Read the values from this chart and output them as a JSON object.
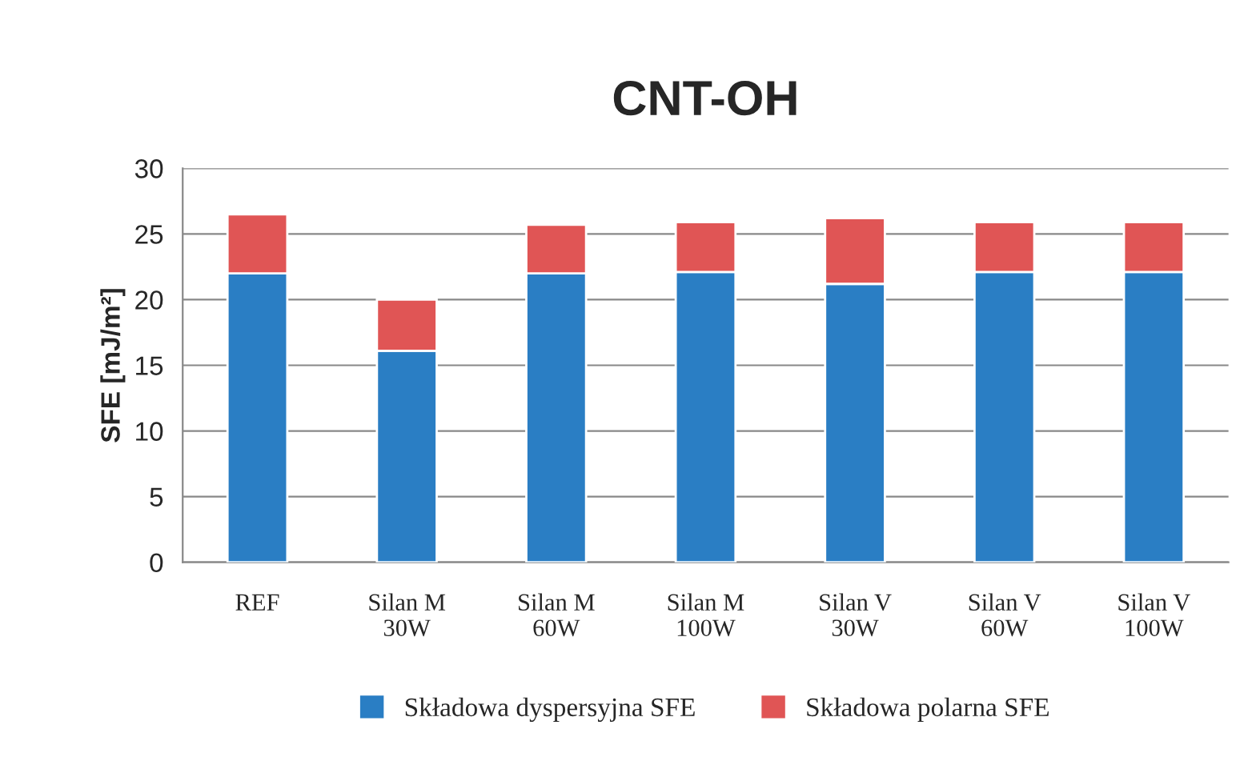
{
  "chart_data": {
    "type": "bar",
    "title": "CNT-OH",
    "ylabel": "SFE [mJ/m²]",
    "stacked": true,
    "categories": [
      "REF",
      "Silan M\n30W",
      "Silan M\n60W",
      "Silan M\n100W",
      "Silan V\n30W",
      "Silan V\n60W",
      "Silan V\n100W"
    ],
    "series": [
      {
        "name": "Składowa dyspersyjna SFE",
        "color": "#2a7ec4",
        "values": [
          22.0,
          16.1,
          22.0,
          22.1,
          21.2,
          22.1,
          22.1
        ]
      },
      {
        "name": "Składowa polarna SFE",
        "color": "#e05555",
        "values": [
          4.5,
          3.9,
          3.7,
          3.8,
          5.0,
          3.8,
          3.8
        ]
      }
    ],
    "ylim": [
      0,
      30
    ],
    "yticks": [
      0,
      5,
      10,
      15,
      20,
      25,
      30
    ],
    "grid": "y",
    "legend": "bottom"
  }
}
